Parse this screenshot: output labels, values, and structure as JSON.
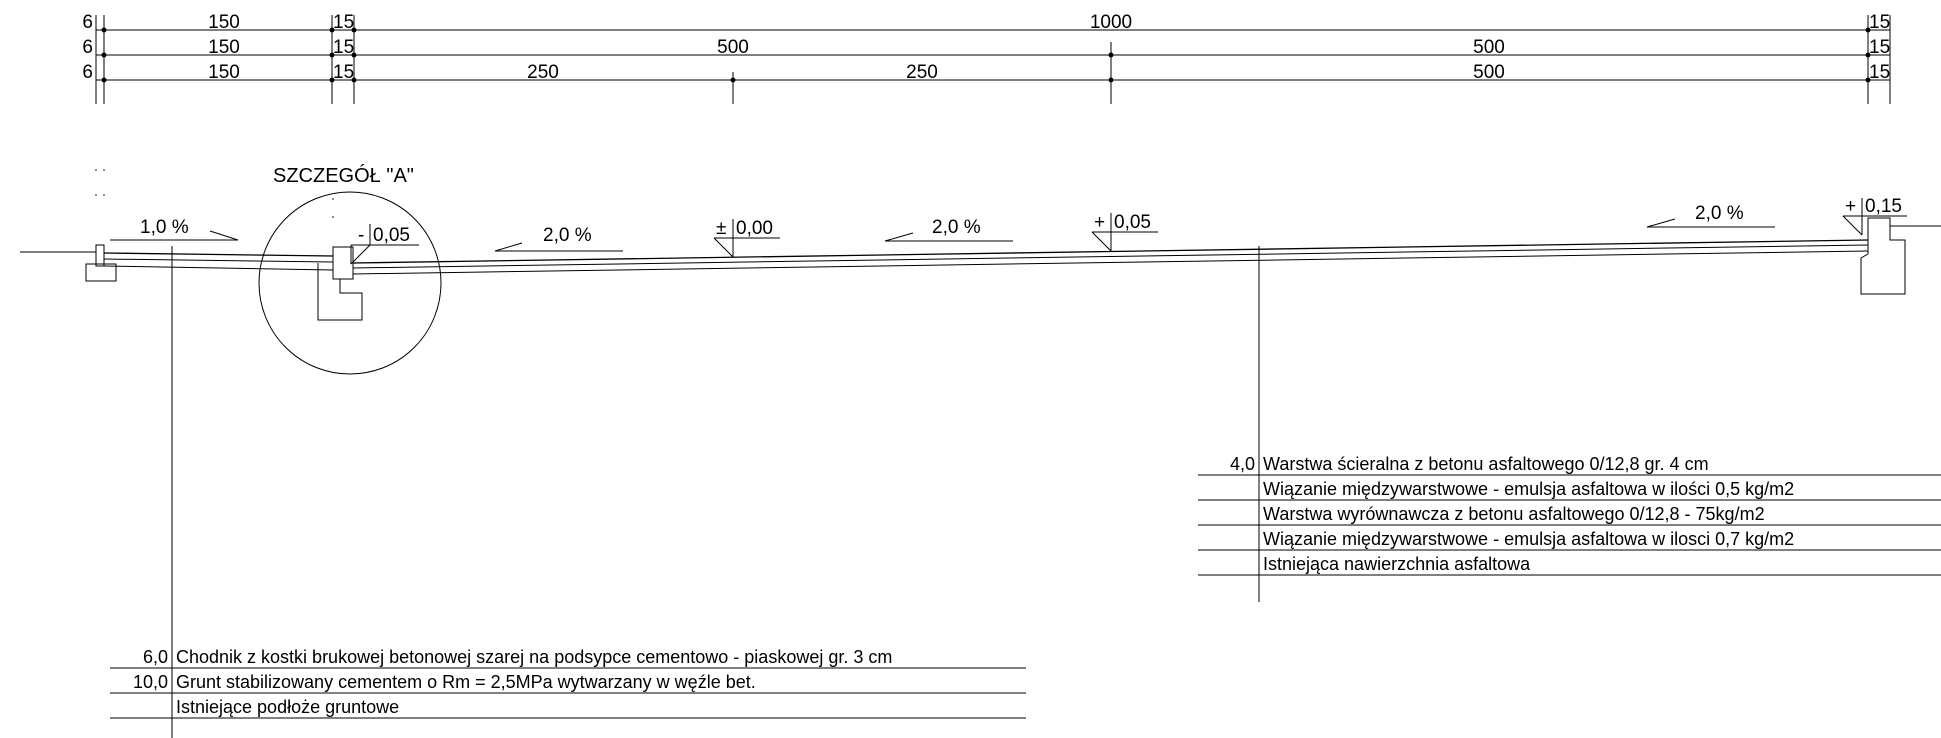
{
  "dimension_rows": [
    [
      "6",
      "150",
      "15",
      "1000",
      "15"
    ],
    [
      "6",
      "150",
      "15",
      "500",
      "500",
      "15"
    ],
    [
      "6",
      "150",
      "15",
      "250",
      "250",
      "500",
      "15"
    ]
  ],
  "detail_label": "SZCZEGÓŁ \"A\"",
  "slopes": [
    "1,0 %",
    "2,0 %",
    "2,0 %",
    "2,0 %"
  ],
  "levels": [
    {
      "sign": "-",
      "value": "0,05"
    },
    {
      "sign": "±",
      "value": "0,00"
    },
    {
      "sign": "+",
      "value": "0,05"
    },
    {
      "sign": "+",
      "value": "0,15"
    }
  ],
  "road_layers": [
    {
      "thickness": "4,0",
      "desc": "Warstwa ścieralna z betonu asfaltowego 0/12,8 gr. 4 cm"
    },
    {
      "thickness": "",
      "desc": "Wiązanie międzywarstwowe - emulsja asfaltowa w ilości 0,5 kg/m2"
    },
    {
      "thickness": "",
      "desc": "Warstwa wyrównawcza z betonu asfaltowego 0/12,8 - 75kg/m2"
    },
    {
      "thickness": "",
      "desc": "Wiązanie międzywarstwowe - emulsja asfaltowa w ilosci 0,7 kg/m2"
    },
    {
      "thickness": "",
      "desc": "Istniejąca nawierzchnia asfaltowa"
    }
  ],
  "sidewalk_layers": [
    {
      "thickness": "6,0",
      "desc": "Chodnik z kostki brukowej betonowej szarej na podsypce cementowo - piaskowej gr. 3 cm"
    },
    {
      "thickness": "10,0",
      "desc": "Grunt stabilizowany cementem o Rm = 2,5MPa wytwarzany w węźle bet."
    },
    {
      "thickness": "",
      "desc": "Istniejące podłoże gruntowe"
    }
  ]
}
